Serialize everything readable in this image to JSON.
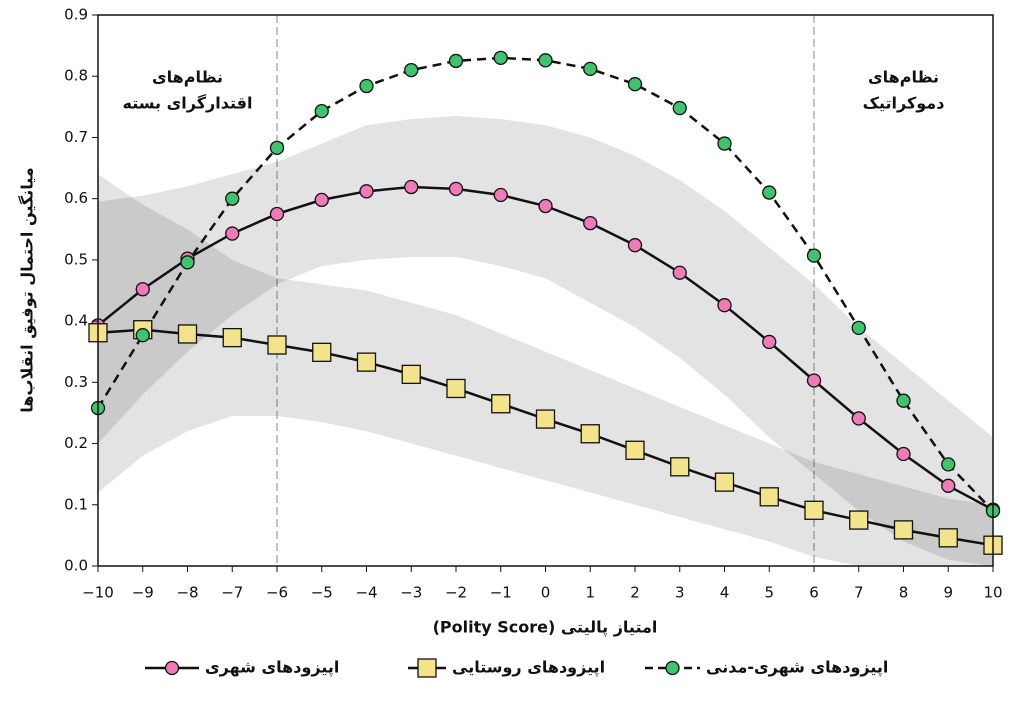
{
  "chart_data": {
    "type": "line",
    "y_label": "میانگین احتمال توفیق انقلاب‌ها",
    "x_label": "امتیاز پالیتی (Polity Score)",
    "annotations": [
      {
        "lines": [
          "نظام‌های",
          "اقتدارگرای بسته"
        ],
        "x": -8
      },
      {
        "lines": [
          "نظام‌های",
          "دموکراتیک"
        ],
        "x": 8
      }
    ],
    "x": [
      -10,
      -9,
      -8,
      -7,
      -6,
      -5,
      -4,
      -3,
      -2,
      -1,
      0,
      1,
      2,
      3,
      4,
      5,
      6,
      7,
      8,
      9,
      10
    ],
    "xlim": [
      -10,
      10
    ],
    "xticks": [
      {
        "value": -10,
        "label": "−10"
      },
      {
        "value": -9,
        "label": "−9"
      },
      {
        "value": -8,
        "label": "−8"
      },
      {
        "value": -7,
        "label": "−7"
      },
      {
        "value": -6,
        "label": "−6"
      },
      {
        "value": -5,
        "label": "−5"
      },
      {
        "value": -4,
        "label": "−4"
      },
      {
        "value": -3,
        "label": "−3"
      },
      {
        "value": -2,
        "label": "−2"
      },
      {
        "value": -1,
        "label": "−1"
      },
      0,
      1,
      2,
      3,
      4,
      5,
      6,
      7,
      8,
      9,
      10
    ],
    "ylim": [
      0,
      0.9
    ],
    "yticks": [
      {
        "value": 0,
        "label": "0.0"
      },
      0.1,
      0.2,
      0.3,
      0.4,
      0.5,
      0.6,
      0.7,
      0.8,
      0.9
    ],
    "vlines": [
      -6,
      6
    ],
    "series": [
      {
        "name": "اپیزودهای شهری",
        "color": "#f07ab8",
        "marker": "circle",
        "linestyle": "solid",
        "values": [
          0.393,
          0.452,
          0.502,
          0.543,
          0.575,
          0.598,
          0.612,
          0.619,
          0.616,
          0.606,
          0.588,
          0.56,
          0.524,
          0.479,
          0.426,
          0.366,
          0.303,
          0.241,
          0.183,
          0.131,
          0.092
        ],
        "lower": [
          0.2,
          0.28,
          0.35,
          0.41,
          0.46,
          0.49,
          0.5,
          0.505,
          0.505,
          0.49,
          0.47,
          0.43,
          0.39,
          0.34,
          0.28,
          0.21,
          0.15,
          0.09,
          0.04,
          0.01,
          0.0
        ],
        "upper": [
          0.595,
          0.605,
          0.62,
          0.64,
          0.66,
          0.69,
          0.72,
          0.73,
          0.735,
          0.73,
          0.72,
          0.7,
          0.67,
          0.63,
          0.58,
          0.52,
          0.46,
          0.39,
          0.33,
          0.27,
          0.21
        ]
      },
      {
        "name": "اپیزودهای روستایی",
        "color": "#f3e38a",
        "marker": "square",
        "linestyle": "solid",
        "values": [
          0.381,
          0.386,
          0.379,
          0.373,
          0.361,
          0.349,
          0.333,
          0.313,
          0.29,
          0.265,
          0.24,
          0.216,
          0.189,
          0.162,
          0.137,
          0.113,
          0.091,
          0.075,
          0.059,
          0.046,
          0.034
        ],
        "lower": [
          0.12,
          0.18,
          0.22,
          0.245,
          0.245,
          0.235,
          0.22,
          0.2,
          0.18,
          0.16,
          0.14,
          0.12,
          0.1,
          0.08,
          0.06,
          0.04,
          0.015,
          0.0,
          0.0,
          0.0,
          0.0
        ],
        "upper": [
          0.64,
          0.59,
          0.55,
          0.5,
          0.47,
          0.46,
          0.45,
          0.43,
          0.41,
          0.38,
          0.35,
          0.32,
          0.29,
          0.26,
          0.23,
          0.2,
          0.17,
          0.15,
          0.13,
          0.11,
          0.1
        ]
      },
      {
        "name": "اپیزودهای شهری-مدنی",
        "color": "#3ec46d",
        "marker": "circle",
        "linestyle": "dashed",
        "values": [
          0.258,
          0.377,
          0.496,
          0.6,
          0.683,
          0.743,
          0.784,
          0.81,
          0.825,
          0.83,
          0.826,
          0.812,
          0.787,
          0.748,
          0.69,
          0.61,
          0.507,
          0.389,
          0.27,
          0.166,
          0.09
        ]
      }
    ]
  }
}
